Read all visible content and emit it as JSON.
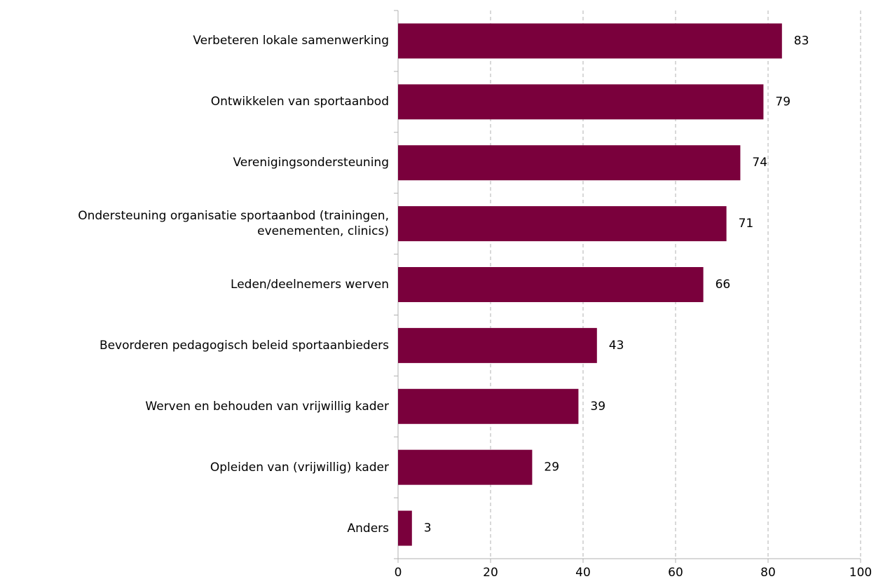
{
  "chart_data": {
    "type": "barh",
    "categories": [
      "Verbeteren lokale samenwerking",
      "Ontwikkelen van sportaanbod",
      "Verenigingsondersteuning",
      "Ondersteuning organisatie sportaanbod (trainingen,\nevenementen, clinics)",
      "Leden/deelnemers werven",
      "Bevorderen pedagogisch beleid sportaanbieders",
      "Werven en behouden van vrijwillig kader",
      "Opleiden van (vrijwillig) kader",
      "Anders"
    ],
    "values": [
      83,
      79,
      74,
      71,
      66,
      43,
      39,
      29,
      3
    ],
    "color": "#7a003c",
    "xlim": [
      0,
      100
    ],
    "xticks": [
      0,
      20,
      40,
      60,
      80,
      100
    ],
    "grid": true
  }
}
